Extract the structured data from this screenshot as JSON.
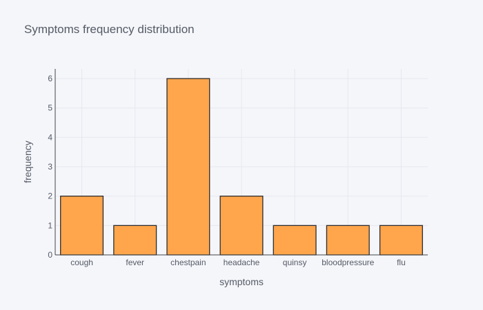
{
  "chart_data": {
    "type": "bar",
    "title": "Symptoms frequency distribution",
    "xlabel": "symptoms",
    "ylabel": "frequency",
    "categories": [
      "cough",
      "fever",
      "chestpain",
      "headache",
      "quinsy",
      "bloodpressure",
      "flu"
    ],
    "values": [
      2,
      1,
      6,
      2,
      1,
      1,
      1
    ],
    "ylim": [
      0,
      6.33
    ],
    "yticks": [
      "0",
      "1",
      "2",
      "3",
      "4",
      "5",
      "6"
    ],
    "grid": true,
    "legend": "none",
    "colors": {
      "bar_fill": "#ffa64d",
      "bar_stroke": "#2b2b2b",
      "background": "#f5f6fa",
      "grid": "#e6e8ef",
      "axis": "#444444",
      "text": "#555a66"
    }
  }
}
